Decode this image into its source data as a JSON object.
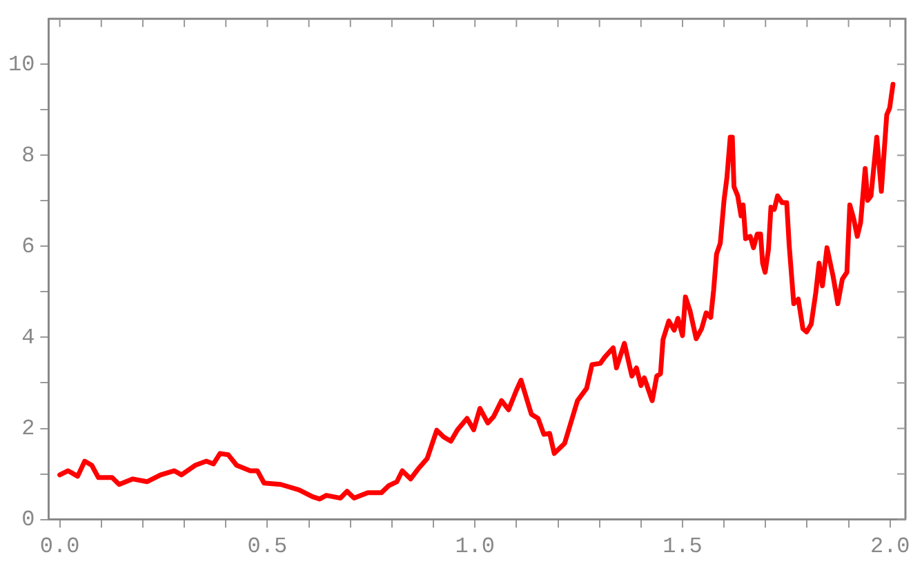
{
  "chart_data": {
    "type": "line",
    "grid": false,
    "legend": false,
    "marker": "none",
    "line_style": "solid",
    "xlim": [
      -0.027,
      2.037
    ],
    "ylim": [
      0,
      11
    ],
    "xticks": [
      {
        "value": 0,
        "label": "0.0"
      },
      {
        "value": 0.1,
        "label": null
      },
      {
        "value": 0.2,
        "label": null
      },
      {
        "value": 0.3,
        "label": null
      },
      {
        "value": 0.4,
        "label": null
      },
      {
        "value": 0.5,
        "label": "0.5"
      },
      {
        "value": 0.6,
        "label": null
      },
      {
        "value": 0.7,
        "label": null
      },
      {
        "value": 0.8,
        "label": null
      },
      {
        "value": 0.9,
        "label": null
      },
      {
        "value": 1,
        "label": "1.0"
      },
      {
        "value": 1.1,
        "label": null
      },
      {
        "value": 1.2,
        "label": null
      },
      {
        "value": 1.3,
        "label": null
      },
      {
        "value": 1.4,
        "label": null
      },
      {
        "value": 1.5,
        "label": "1.5"
      },
      {
        "value": 1.6,
        "label": null
      },
      {
        "value": 1.7,
        "label": null
      },
      {
        "value": 1.8,
        "label": null
      },
      {
        "value": 1.9,
        "label": null
      },
      {
        "value": 2,
        "label": "2.0"
      }
    ],
    "yticks": [
      0,
      {
        "value": 1,
        "label": null
      },
      2,
      {
        "value": 3,
        "label": null
      },
      4,
      {
        "value": 5,
        "label": null
      },
      6,
      {
        "value": 7,
        "label": null
      },
      8,
      {
        "value": 9,
        "label": null
      },
      10
    ],
    "x": [
      0,
      0.02,
      0.043,
      0.06,
      0.077,
      0.093,
      0.126,
      0.143,
      0.176,
      0.21,
      0.243,
      0.276,
      0.293,
      0.326,
      0.353,
      0.37,
      0.386,
      0.406,
      0.426,
      0.459,
      0.476,
      0.492,
      0.532,
      0.576,
      0.609,
      0.626,
      0.642,
      0.676,
      0.692,
      0.709,
      0.742,
      0.775,
      0.792,
      0.812,
      0.825,
      0.845,
      0.865,
      0.885,
      0.908,
      0.925,
      0.942,
      0.958,
      0.981,
      0.997,
      1.012,
      1.031,
      1.045,
      1.064,
      1.081,
      1.1,
      1.111,
      1.136,
      1.152,
      1.166,
      1.18,
      1.191,
      1.216,
      1.247,
      1.269,
      1.282,
      1.302,
      1.313,
      1.333,
      1.341,
      1.36,
      1.378,
      1.389,
      1.4,
      1.408,
      1.427,
      1.438,
      1.447,
      1.453,
      1.467,
      1.48,
      1.489,
      1.5,
      1.507,
      1.518,
      1.533,
      1.546,
      1.557,
      1.568,
      1.575,
      1.582,
      1.591,
      1.6,
      1.607,
      1.615,
      1.62,
      1.624,
      1.633,
      1.641,
      1.646,
      1.652,
      1.663,
      1.671,
      1.68,
      1.688,
      1.693,
      1.699,
      1.707,
      1.713,
      1.721,
      1.729,
      1.74,
      1.751,
      1.757,
      1.768,
      1.779,
      1.79,
      1.799,
      1.81,
      1.821,
      1.829,
      1.837,
      1.848,
      1.863,
      1.874,
      1.885,
      1.896,
      1.903,
      1.912,
      1.921,
      1.929,
      1.94,
      1.946,
      1.954,
      1.968,
      1.979,
      1.992,
      1.999,
      2.007
    ],
    "series": [
      {
        "color": "#ff0000",
        "values": [
          0.98,
          1.07,
          0.95,
          1.28,
          1.19,
          0.92,
          0.92,
          0.77,
          0.89,
          0.83,
          0.98,
          1.07,
          0.98,
          1.19,
          1.28,
          1.22,
          1.45,
          1.42,
          1.19,
          1.07,
          1.07,
          0.8,
          0.77,
          0.65,
          0.5,
          0.45,
          0.53,
          0.47,
          0.62,
          0.47,
          0.59,
          0.59,
          0.74,
          0.83,
          1.07,
          0.89,
          1.13,
          1.34,
          1.96,
          1.81,
          1.72,
          1.97,
          2.22,
          1.97,
          2.44,
          2.12,
          2.26,
          2.61,
          2.41,
          2.84,
          3.06,
          2.31,
          2.22,
          1.87,
          1.89,
          1.45,
          1.67,
          2.61,
          2.88,
          3.4,
          3.43,
          3.57,
          3.77,
          3.33,
          3.87,
          3.15,
          3.33,
          2.94,
          3.11,
          2.61,
          3.15,
          3.2,
          3.95,
          4.36,
          4.16,
          4.42,
          4.04,
          4.89,
          4.59,
          3.97,
          4.19,
          4.54,
          4.44,
          5.04,
          5.83,
          6.07,
          7.01,
          7.51,
          8.4,
          8.4,
          7.31,
          7.11,
          6.67,
          6.91,
          6.17,
          6.22,
          5.97,
          6.27,
          6.27,
          5.63,
          5.43,
          5.93,
          6.86,
          6.81,
          7.11,
          6.96,
          6.96,
          6.02,
          4.74,
          4.84,
          4.19,
          4.12,
          4.29,
          4.98,
          5.63,
          5.13,
          5.97,
          5.33,
          4.74,
          5.28,
          5.43,
          6.91,
          6.62,
          6.22,
          6.52,
          7.71,
          7.01,
          7.11,
          8.4,
          7.21,
          8.89,
          9.04,
          9.56
        ]
      }
    ]
  }
}
